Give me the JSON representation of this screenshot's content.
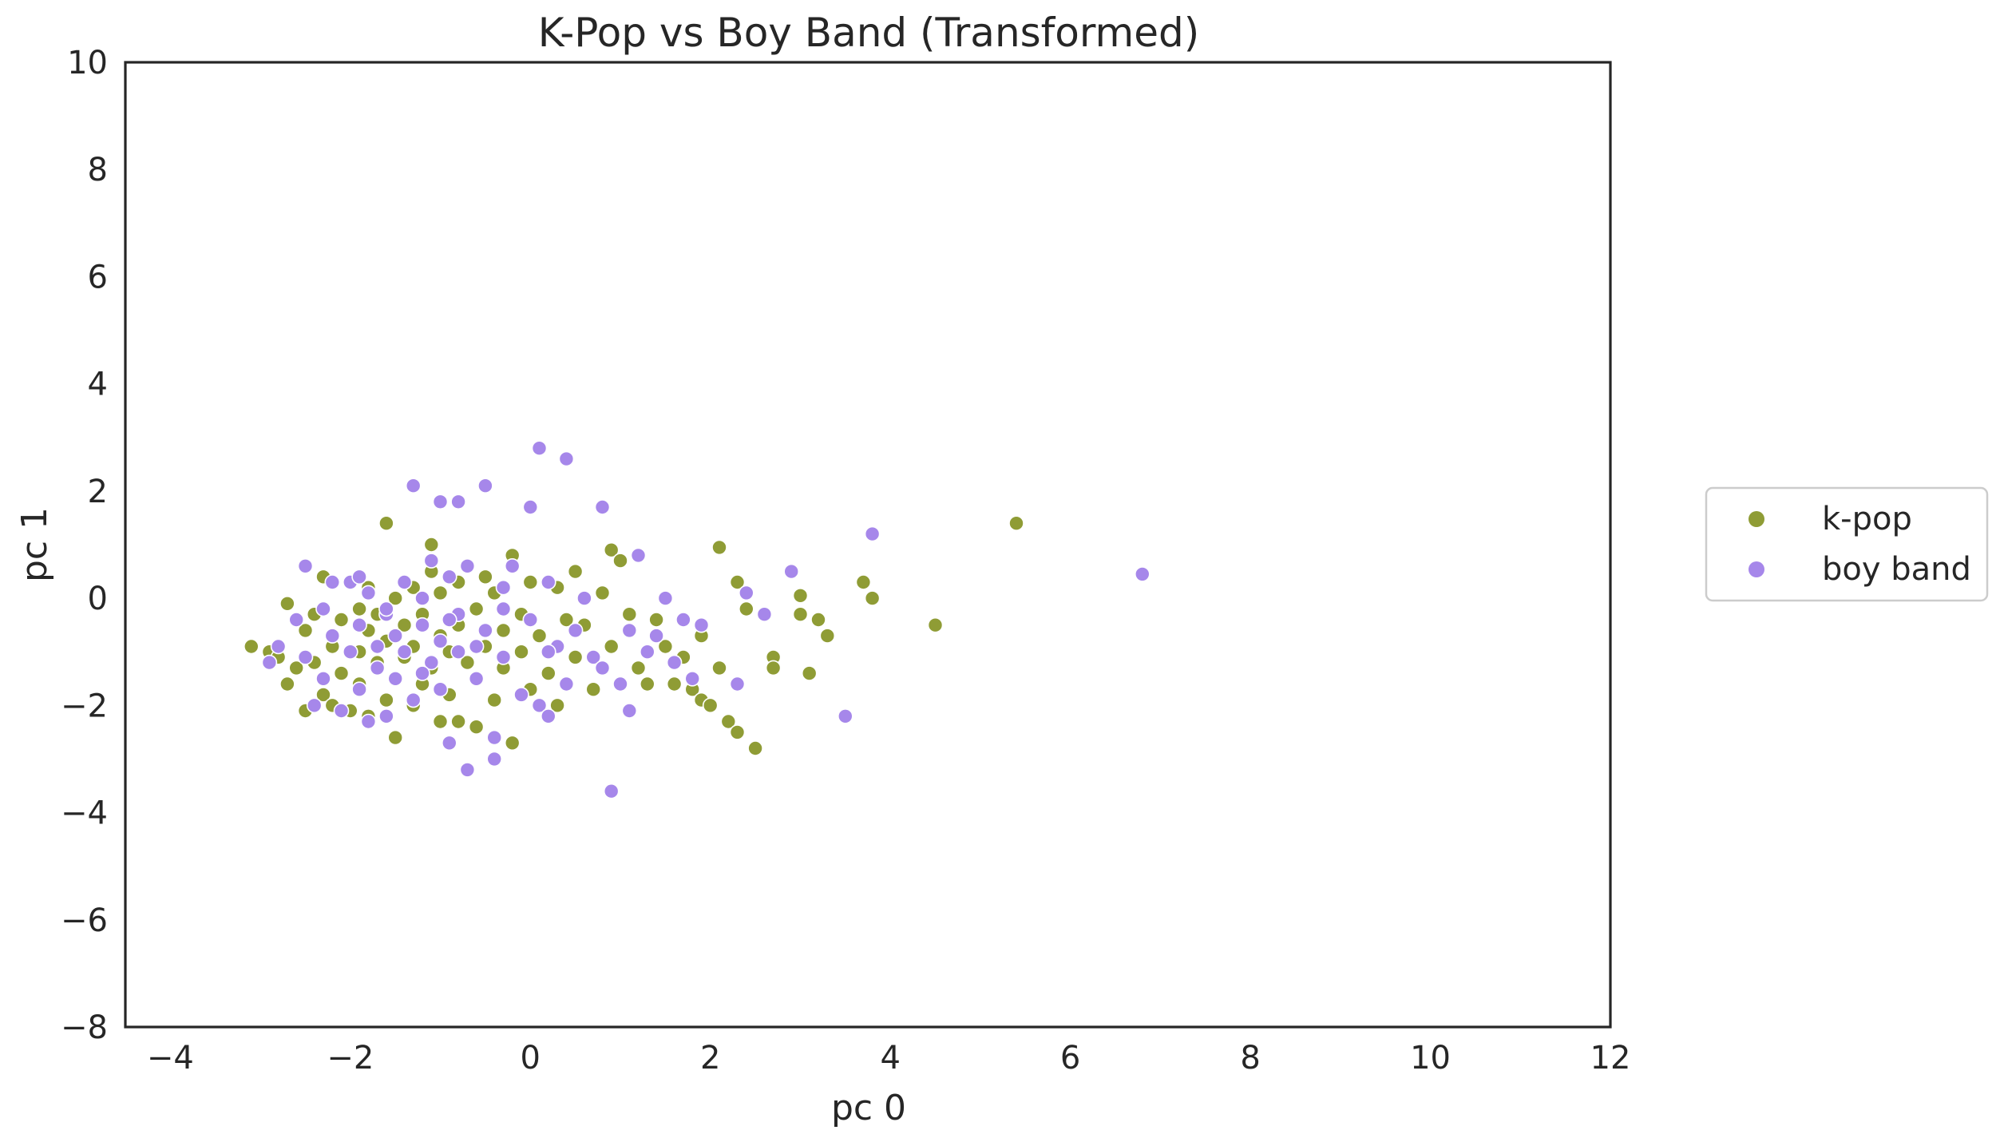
{
  "chart_data": {
    "type": "scatter",
    "title": "K-Pop vs Boy Band (Transformed)",
    "xlabel": "pc 0",
    "ylabel": "pc 1",
    "xlim": [
      -4.5,
      12
    ],
    "ylim": [
      -8,
      10
    ],
    "x_ticks": [
      "−4",
      "−2",
      "0",
      "2",
      "4",
      "6",
      "8",
      "10",
      "12"
    ],
    "y_ticks": [
      "−8",
      "−6",
      "−4",
      "−2",
      "0",
      "2",
      "4",
      "6",
      "8",
      "10"
    ],
    "x_tick_values": [
      -4,
      -2,
      0,
      2,
      4,
      6,
      8,
      10,
      12
    ],
    "y_tick_values": [
      -8,
      -6,
      -4,
      -2,
      0,
      2,
      4,
      6,
      8,
      10
    ],
    "grid": false,
    "legend_position": "right, outside plot, vertically centered",
    "series": [
      {
        "name": "k-pop",
        "color": "#8f9c35",
        "points": [
          [
            -3.1,
            -0.9
          ],
          [
            -2.9,
            -1.0
          ],
          [
            -2.8,
            -1.1
          ],
          [
            -2.7,
            -0.1
          ],
          [
            -2.7,
            -1.6
          ],
          [
            -2.6,
            -1.3
          ],
          [
            -2.5,
            -2.1
          ],
          [
            -2.5,
            -0.6
          ],
          [
            -2.4,
            -1.2
          ],
          [
            -2.4,
            -0.3
          ],
          [
            -2.3,
            -1.8
          ],
          [
            -2.3,
            0.4
          ],
          [
            -2.2,
            -0.9
          ],
          [
            -2.2,
            -2.0
          ],
          [
            -2.1,
            -0.4
          ],
          [
            -2.1,
            -1.4
          ],
          [
            -2.0,
            0.3
          ],
          [
            -2.0,
            -2.1
          ],
          [
            -1.9,
            -1.0
          ],
          [
            -1.9,
            -0.2
          ],
          [
            -1.9,
            -1.6
          ],
          [
            -1.8,
            -0.6
          ],
          [
            -1.8,
            0.2
          ],
          [
            -1.8,
            -2.2
          ],
          [
            -1.7,
            -1.2
          ],
          [
            -1.7,
            -0.3
          ],
          [
            -1.6,
            -1.9
          ],
          [
            -1.6,
            1.4
          ],
          [
            -1.6,
            -0.8
          ],
          [
            -1.5,
            -2.6
          ],
          [
            -1.5,
            -1.5
          ],
          [
            -1.5,
            0.0
          ],
          [
            -1.4,
            -0.5
          ],
          [
            -1.4,
            -1.1
          ],
          [
            -1.3,
            -2.0
          ],
          [
            -1.3,
            0.2
          ],
          [
            -1.3,
            -0.9
          ],
          [
            -1.2,
            -1.6
          ],
          [
            -1.2,
            -0.3
          ],
          [
            -1.1,
            1.0
          ],
          [
            -1.1,
            -1.3
          ],
          [
            -1.1,
            0.5
          ],
          [
            -1.0,
            -2.3
          ],
          [
            -1.0,
            -0.7
          ],
          [
            -1.0,
            0.1
          ],
          [
            -0.9,
            -1.0
          ],
          [
            -0.9,
            -2.7
          ],
          [
            -0.9,
            -1.8
          ],
          [
            -0.8,
            0.3
          ],
          [
            -0.8,
            -0.5
          ],
          [
            -0.8,
            -2.3
          ],
          [
            -0.7,
            -1.2
          ],
          [
            -0.7,
            0.6
          ],
          [
            -0.6,
            -0.2
          ],
          [
            -0.6,
            -2.4
          ],
          [
            -0.6,
            -1.5
          ],
          [
            -0.5,
            -0.9
          ],
          [
            -0.5,
            0.4
          ],
          [
            -0.4,
            -1.9
          ],
          [
            -0.4,
            0.1
          ],
          [
            -0.3,
            -0.6
          ],
          [
            -0.3,
            -1.3
          ],
          [
            -0.2,
            0.8
          ],
          [
            -0.2,
            -2.7
          ],
          [
            -0.1,
            -0.3
          ],
          [
            -0.1,
            -1.0
          ],
          [
            0.0,
            0.3
          ],
          [
            0.0,
            -1.7
          ],
          [
            0.1,
            -0.7
          ],
          [
            0.2,
            -1.4
          ],
          [
            0.3,
            0.2
          ],
          [
            0.3,
            -2.0
          ],
          [
            0.4,
            -0.4
          ],
          [
            0.5,
            -1.1
          ],
          [
            0.5,
            0.5
          ],
          [
            0.6,
            -0.5
          ],
          [
            0.7,
            -1.7
          ],
          [
            0.8,
            0.1
          ],
          [
            0.9,
            -0.9
          ],
          [
            0.9,
            0.9
          ],
          [
            1.0,
            0.7
          ],
          [
            1.1,
            -0.3
          ],
          [
            1.2,
            -1.3
          ],
          [
            1.3,
            -1.6
          ],
          [
            1.4,
            -0.4
          ],
          [
            1.5,
            -0.9
          ],
          [
            1.6,
            -1.6
          ],
          [
            1.7,
            -1.1
          ],
          [
            1.8,
            -1.7
          ],
          [
            1.9,
            -0.7
          ],
          [
            1.9,
            -1.9
          ],
          [
            2.0,
            -2.0
          ],
          [
            2.1,
            -1.3
          ],
          [
            2.1,
            0.95
          ],
          [
            2.2,
            -2.3
          ],
          [
            2.3,
            0.3
          ],
          [
            2.3,
            -2.5
          ],
          [
            2.4,
            -0.2
          ],
          [
            2.5,
            -2.8
          ],
          [
            2.7,
            -1.1
          ],
          [
            3.0,
            0.05
          ],
          [
            3.0,
            -0.3
          ],
          [
            3.1,
            -1.4
          ],
          [
            3.2,
            -0.4
          ],
          [
            3.3,
            -0.7
          ],
          [
            3.7,
            0.3
          ],
          [
            3.8,
            0.0
          ],
          [
            4.5,
            -0.5
          ],
          [
            5.4,
            1.4
          ],
          [
            2.7,
            -1.3
          ]
        ]
      },
      {
        "name": "boy band",
        "color": "#a687ea",
        "points": [
          [
            -2.9,
            -1.2
          ],
          [
            -2.8,
            -0.9
          ],
          [
            -2.6,
            -0.4
          ],
          [
            -2.5,
            0.6
          ],
          [
            -2.5,
            -1.1
          ],
          [
            -2.4,
            -2.0
          ],
          [
            -2.3,
            -0.2
          ],
          [
            -2.3,
            -1.5
          ],
          [
            -2.2,
            -0.7
          ],
          [
            -2.1,
            -2.1
          ],
          [
            -2.0,
            0.3
          ],
          [
            -2.0,
            -1.0
          ],
          [
            -1.9,
            -0.5
          ],
          [
            -1.9,
            -1.7
          ],
          [
            -1.8,
            -2.3
          ],
          [
            -1.8,
            0.1
          ],
          [
            -1.7,
            -0.9
          ],
          [
            -1.7,
            -1.3
          ],
          [
            -1.6,
            -0.3
          ],
          [
            -1.6,
            -2.2
          ],
          [
            -1.5,
            -0.7
          ],
          [
            -1.5,
            -1.5
          ],
          [
            -1.4,
            0.3
          ],
          [
            -1.4,
            -1.0
          ],
          [
            -1.3,
            2.1
          ],
          [
            -1.3,
            -1.9
          ],
          [
            -1.2,
            -0.5
          ],
          [
            -1.2,
            0.0
          ],
          [
            -1.1,
            -1.2
          ],
          [
            -1.1,
            0.7
          ],
          [
            -1.0,
            1.8
          ],
          [
            -1.0,
            -0.8
          ],
          [
            -1.0,
            -1.7
          ],
          [
            -0.9,
            0.4
          ],
          [
            -0.9,
            -2.7
          ],
          [
            -0.8,
            1.8
          ],
          [
            -0.8,
            -0.3
          ],
          [
            -0.8,
            -1.0
          ],
          [
            -0.7,
            -3.2
          ],
          [
            -0.7,
            0.6
          ],
          [
            -0.6,
            -1.5
          ],
          [
            -0.5,
            2.1
          ],
          [
            -0.5,
            -0.6
          ],
          [
            -0.4,
            -2.6
          ],
          [
            -0.4,
            -3.0
          ],
          [
            -0.3,
            0.2
          ],
          [
            -0.3,
            -1.1
          ],
          [
            -0.2,
            0.6
          ],
          [
            -0.1,
            -1.8
          ],
          [
            0.0,
            1.7
          ],
          [
            0.0,
            -0.4
          ],
          [
            0.1,
            2.8
          ],
          [
            0.1,
            -2.0
          ],
          [
            0.2,
            0.3
          ],
          [
            0.2,
            -2.2
          ],
          [
            0.3,
            -0.9
          ],
          [
            0.4,
            2.6
          ],
          [
            0.4,
            -1.6
          ],
          [
            0.5,
            -0.6
          ],
          [
            0.6,
            0.0
          ],
          [
            0.7,
            -1.1
          ],
          [
            0.8,
            1.7
          ],
          [
            0.8,
            -1.3
          ],
          [
            0.9,
            -3.6
          ],
          [
            1.0,
            -1.6
          ],
          [
            1.1,
            -2.1
          ],
          [
            1.1,
            -0.6
          ],
          [
            1.2,
            0.8
          ],
          [
            1.3,
            -1.0
          ],
          [
            1.4,
            -0.7
          ],
          [
            1.5,
            0.0
          ],
          [
            1.6,
            -1.2
          ],
          [
            1.7,
            -0.4
          ],
          [
            1.8,
            -1.5
          ],
          [
            1.9,
            -0.5
          ],
          [
            2.3,
            -1.6
          ],
          [
            2.4,
            0.1
          ],
          [
            2.6,
            -0.3
          ],
          [
            2.9,
            0.5
          ],
          [
            3.5,
            -2.2
          ],
          [
            3.8,
            1.2
          ],
          [
            6.8,
            0.45
          ],
          [
            -2.2,
            0.3
          ],
          [
            -1.9,
            0.4
          ],
          [
            -1.6,
            -0.2
          ],
          [
            -1.2,
            -1.4
          ],
          [
            -0.9,
            -0.4
          ],
          [
            -0.6,
            -0.9
          ],
          [
            -0.3,
            -0.2
          ],
          [
            0.2,
            -1.0
          ]
        ]
      }
    ]
  }
}
